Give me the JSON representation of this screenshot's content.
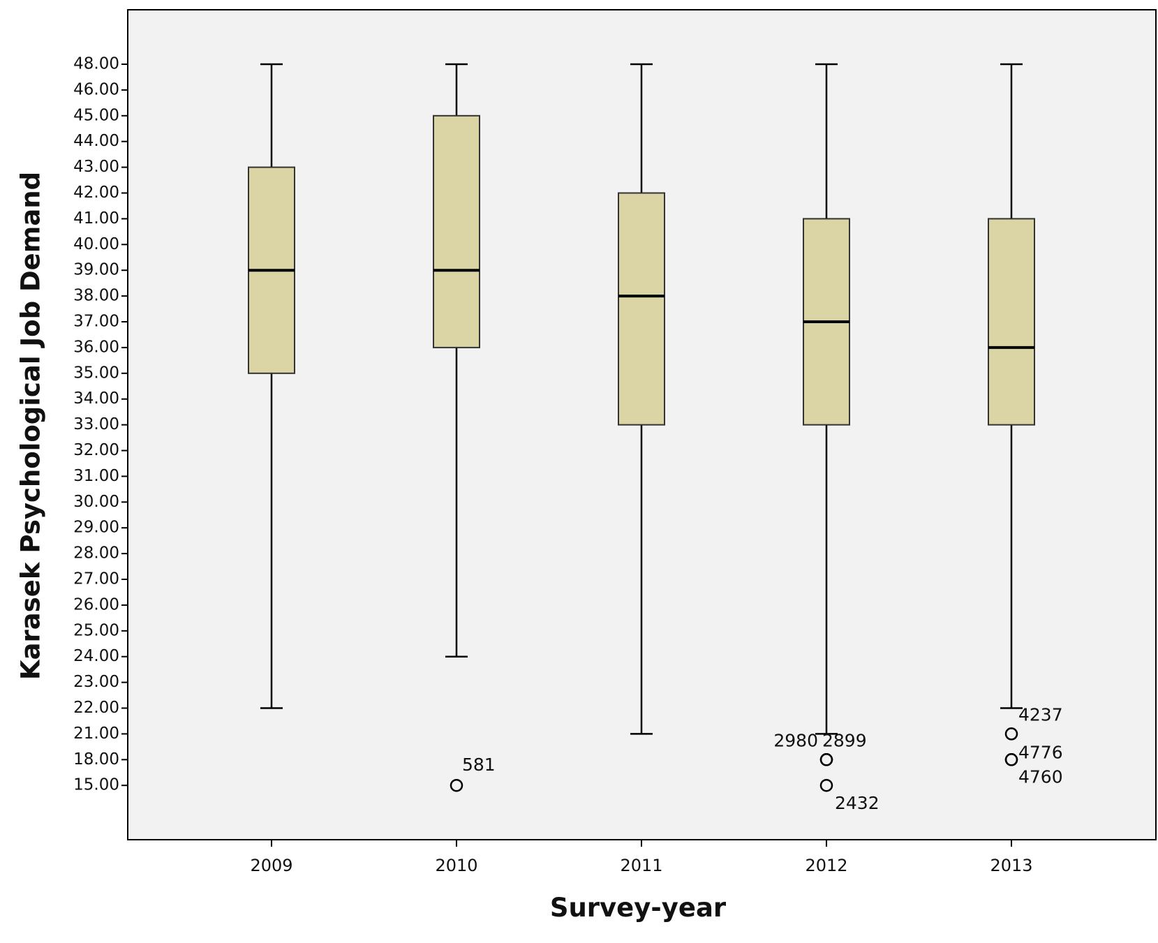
{
  "chart_data": {
    "type": "boxplot",
    "title": "",
    "xlabel": "Survey-year",
    "ylabel": "Karasek Psychological Job Demand",
    "categories": [
      "2009",
      "2010",
      "2011",
      "2012",
      "2013"
    ],
    "y_tick_labels": [
      "48.00",
      "46.00",
      "45.00",
      "44.00",
      "43.00",
      "42.00",
      "41.00",
      "40.00",
      "39.00",
      "38.00",
      "37.00",
      "36.00",
      "35.00",
      "34.00",
      "33.00",
      "32.00",
      "31.00",
      "30.00",
      "29.00",
      "28.00",
      "27.00",
      "26.00",
      "25.00",
      "24.00",
      "23.00",
      "22.00",
      "21.00",
      "18.00",
      "15.00"
    ],
    "boxes": [
      {
        "category": "2009",
        "whisker_low": "22.00",
        "q1": "35.00",
        "median": "39.00",
        "q3": "43.00",
        "whisker_high": "48.00",
        "outliers": []
      },
      {
        "category": "2010",
        "whisker_low": "24.00",
        "q1": "36.00",
        "median": "39.00",
        "q3": "45.00",
        "whisker_high": "48.00",
        "outliers": [
          {
            "value": "15.00",
            "label": "581"
          }
        ]
      },
      {
        "category": "2011",
        "whisker_low": "21.00",
        "q1": "33.00",
        "median": "38.00",
        "q3": "42.00",
        "whisker_high": "48.00",
        "outliers": []
      },
      {
        "category": "2012",
        "whisker_low": "21.00",
        "q1": "33.00",
        "median": "37.00",
        "q3": "41.00",
        "whisker_high": "48.00",
        "outliers": [
          {
            "value": "18.00",
            "label": "2980"
          },
          {
            "value": "18.00",
            "label": "2899"
          },
          {
            "value": "15.00",
            "label": "2432"
          }
        ]
      },
      {
        "category": "2013",
        "whisker_low": "22.00",
        "q1": "33.00",
        "median": "36.00",
        "q3": "41.00",
        "whisker_high": "48.00",
        "outliers": [
          {
            "value": "21.00",
            "label": "4237"
          },
          {
            "value": "18.00",
            "label": "4776"
          },
          {
            "value": "18.00",
            "label": "4760"
          }
        ]
      }
    ],
    "colors": {
      "box_fill": "#dbd5a6",
      "plot_background": "#f2f2f2",
      "line": "#000000"
    },
    "grid": false,
    "legend": "none"
  }
}
